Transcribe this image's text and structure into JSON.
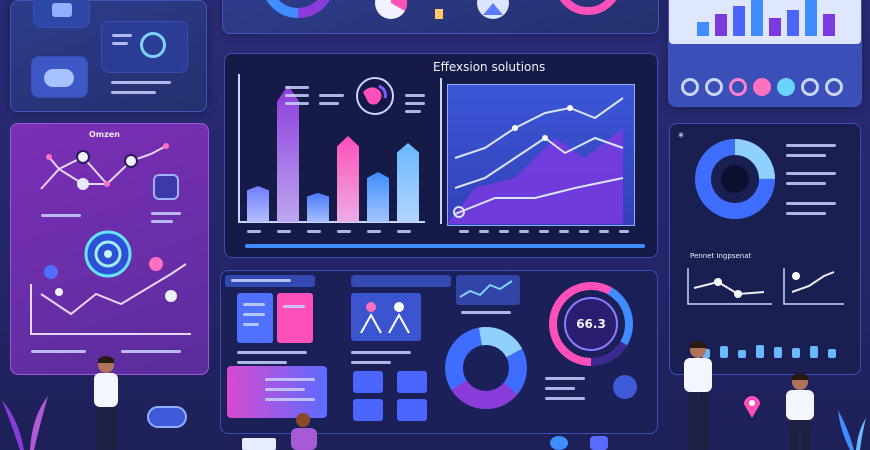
{
  "main_panel": {
    "title": "Effexsion solutions"
  },
  "center_chart": {
    "bars": [
      {
        "value": 0.25,
        "color": "#6f7cff"
      },
      {
        "value": 0.95,
        "color": "#8a3bd9"
      },
      {
        "value": 0.2,
        "color": "#4a7cff"
      },
      {
        "value": 0.6,
        "color": "#ff4fb8"
      },
      {
        "value": 0.35,
        "color": "#3f8dff"
      },
      {
        "value": 0.55,
        "color": "#6ab8ff"
      }
    ]
  },
  "top_right_bars": [
    0.35,
    0.55,
    0.75,
    1.0,
    0.45,
    0.65,
    0.9,
    0.55
  ],
  "right_bars": [
    0.4,
    0.55,
    0.35,
    0.6,
    0.5,
    0.45,
    0.55,
    0.4
  ],
  "gauge": {
    "value": "66.3"
  },
  "left_panel": {
    "title": "Omzen"
  },
  "right_panel": {
    "subtitle": "Pennet Ingpsenat"
  },
  "colors": {
    "accent_pink": "#ff4fb8",
    "accent_blue": "#3f8dff",
    "accent_purple": "#8a3bd9"
  }
}
